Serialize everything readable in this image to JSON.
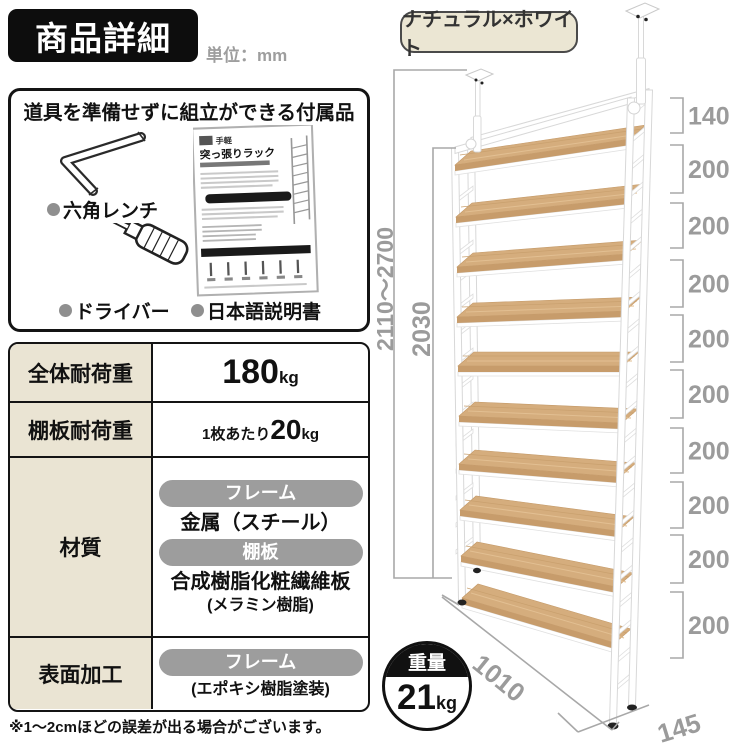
{
  "page": {
    "title": "商品詳細",
    "unit_note": "単位：mm",
    "color_badge": "ナチュラル×ホワイト",
    "footnote": "※1～2cmほどの誤差が出る場合がございます。"
  },
  "accessories": {
    "title": "道具を準備せずに組立ができる付属品",
    "items": [
      {
        "label": "六角レンチ"
      },
      {
        "label": "ドライバー"
      },
      {
        "label": "日本語説明書"
      }
    ],
    "manual_top": "手軽",
    "manual_title": "突っ張りラック"
  },
  "spec_table": {
    "rows": [
      {
        "label": "全体耐荷重",
        "big": "180",
        "unit": "kg"
      },
      {
        "label": "棚板耐荷重",
        "prefix": "1枚あたり",
        "big": "20",
        "unit": "kg"
      },
      {
        "label": "材質",
        "frame_pill": "フレーム",
        "frame_text": "金属（スチール）",
        "board_pill": "棚板",
        "board_text": "合成樹脂化粧繊維板",
        "board_subtext": "(メラミン樹脂)"
      },
      {
        "label": "表面加工",
        "frame_pill": "フレーム",
        "frame_text": "(エポキシ樹脂塗装)"
      }
    ]
  },
  "diagram": {
    "total_height_label": "2110～2700",
    "frame_height_label": "2030",
    "width_label": "1010",
    "depth_label": "145",
    "segments": [
      "140",
      "200",
      "200",
      "200",
      "200",
      "200",
      "200",
      "200",
      "200",
      "200"
    ],
    "weight_label": "重量",
    "weight_value": "21",
    "weight_unit": "kg"
  },
  "colors": {
    "accent_beige": "#ebe6d3",
    "table_label_beige": "#eae4d3",
    "pill_gray": "#9d9d9d",
    "dimension_gray": "#9b9b9b",
    "wood": "#d5ad7d",
    "black": "#141414"
  }
}
